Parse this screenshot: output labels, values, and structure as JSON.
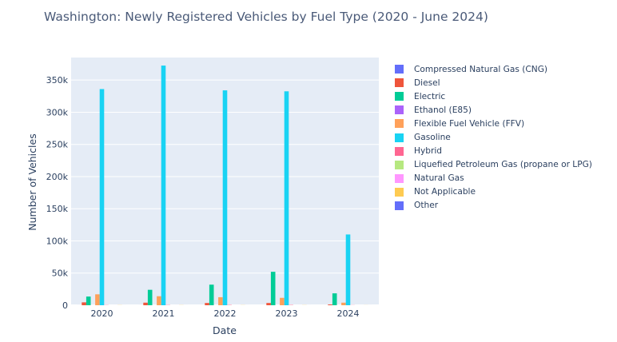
{
  "chart_data": {
    "type": "bar",
    "title": "Washington: Newly Registered Vehicles by Fuel Type (2020 - June 2024)",
    "xlabel": "Date",
    "ylabel": "Number of Vehicles",
    "ylim": [
      0,
      385000
    ],
    "yticks": [
      0,
      50000,
      100000,
      150000,
      200000,
      250000,
      300000,
      350000
    ],
    "ytick_labels": [
      "0",
      "50k",
      "100k",
      "150k",
      "200k",
      "250k",
      "300k",
      "350k"
    ],
    "categories": [
      "2020",
      "2021",
      "2022",
      "2023",
      "2024"
    ],
    "grid": true,
    "legend_position": "right",
    "series": [
      {
        "name": "Compressed Natural Gas (CNG)",
        "color": "#636efa",
        "values": [
          20,
          20,
          20,
          10,
          5
        ]
      },
      {
        "name": "Diesel",
        "color": "#ef553b",
        "values": [
          4500,
          4000,
          3500,
          3500,
          1200
        ]
      },
      {
        "name": "Electric",
        "color": "#00cc96",
        "values": [
          13500,
          24000,
          32000,
          52000,
          18500
        ]
      },
      {
        "name": "Ethanol (E85)",
        "color": "#ab63fa",
        "values": [
          50,
          40,
          30,
          20,
          10
        ]
      },
      {
        "name": "Flexible Fuel Vehicle (FFV)",
        "color": "#ffa15a",
        "values": [
          17000,
          14000,
          12500,
          11500,
          4000
        ]
      },
      {
        "name": "Gasoline",
        "color": "#19d3f3",
        "values": [
          336000,
          372500,
          334000,
          332500,
          110000
        ]
      },
      {
        "name": "Hybrid",
        "color": "#ff6692",
        "values": [
          300,
          400,
          500,
          500,
          200
        ]
      },
      {
        "name": "Liquefied Petroleum Gas (propane or LPG)",
        "color": "#b6e880",
        "values": [
          5,
          5,
          5,
          5,
          2
        ]
      },
      {
        "name": "Natural Gas",
        "color": "#ff97ff",
        "values": [
          10,
          10,
          10,
          10,
          5
        ]
      },
      {
        "name": "Not Applicable",
        "color": "#fecb52",
        "values": [
          200,
          200,
          200,
          200,
          100
        ]
      },
      {
        "name": "Other",
        "color": "#636efa",
        "values": [
          10,
          10,
          10,
          10,
          5
        ]
      }
    ]
  }
}
